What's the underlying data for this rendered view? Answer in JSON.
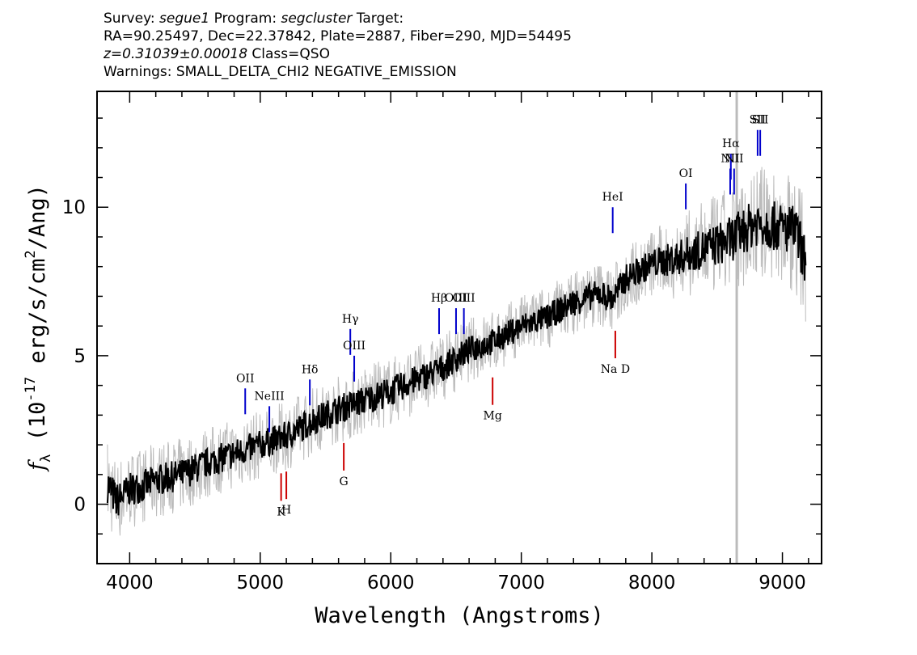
{
  "header": {
    "line1": {
      "survey_label": "Survey:",
      "survey": "segue1",
      "program_label": "Program:",
      "program": "segcluster",
      "target_label": "Target:"
    },
    "line2": "RA=90.25497, Dec=22.37842, Plate=2887, Fiber=290, MJD=54495",
    "line3": {
      "z": "z=0.31039±0.00018",
      "class": "Class=QSO"
    },
    "line4": "Warnings: SMALL_DELTA_CHI2 NEGATIVE_EMISSION"
  },
  "chart_data": {
    "type": "line",
    "xlabel": "Wavelength (Angstroms)",
    "ylabel": "f_λ (10^-17 erg/s/cm^2/Ang)",
    "xlim": [
      3750,
      9300
    ],
    "ylim": [
      -2,
      13.9
    ],
    "x_ticks": [
      4000,
      5000,
      6000,
      7000,
      8000,
      9000
    ],
    "y_ticks": [
      0,
      5,
      10
    ],
    "grid": false,
    "colors": {
      "flux": "#000000",
      "error": "#bbbbbb",
      "emission": "#0000cc",
      "absorption": "#cc0000"
    },
    "series": [
      {
        "x": [
          3830,
          3900,
          4000,
          4100,
          4200,
          4400,
          4600,
          4800,
          5000,
          5200,
          5400,
          5600,
          5800,
          6000,
          6200,
          6400,
          6600,
          6800,
          7000,
          7200,
          7400,
          7600,
          7700,
          7800,
          8000,
          8200,
          8400,
          8600,
          8800,
          9000,
          9100,
          9180
        ],
        "y": [
          0.7,
          0.1,
          0.5,
          0.6,
          0.8,
          1.0,
          1.4,
          1.7,
          2.0,
          2.3,
          2.8,
          3.2,
          3.5,
          3.8,
          4.2,
          4.6,
          5.2,
          5.5,
          6.0,
          6.3,
          6.8,
          7.1,
          6.9,
          7.6,
          8.1,
          8.3,
          8.6,
          8.9,
          9.5,
          9.3,
          9.2,
          8.1
        ]
      }
    ],
    "error_band": {
      "x": [
        3830,
        4000,
        5000,
        6000,
        7000,
        8000,
        8600,
        9180
      ],
      "y": [
        1.2,
        1.0,
        0.9,
        0.9,
        0.8,
        0.9,
        1.4,
        1.6
      ]
    },
    "marked_x": 8650,
    "emission_lines": [
      {
        "label": "OII",
        "x": 4885,
        "y_label": 4.2
      },
      {
        "label": "NeIII",
        "x": 5070,
        "y_label": 3.6
      },
      {
        "label": "Hδ",
        "x": 5380,
        "y_label": 4.5
      },
      {
        "label": "Hγ",
        "x": 5690,
        "y_label": 6.2
      },
      {
        "label": "OIII",
        "x": 5720,
        "y_label": 5.3
      },
      {
        "label": "Hβ",
        "x": 6370,
        "y_label": 6.9
      },
      {
        "label": "OIII",
        "x": 6500,
        "y_label": 6.9
      },
      {
        "label": "OIII",
        "x": 6560,
        "y_label": 6.9
      },
      {
        "label": "HeI",
        "x": 7700,
        "y_label": 10.3
      },
      {
        "label": "OI",
        "x": 8260,
        "y_label": 11.1
      },
      {
        "label": "NII",
        "x": 8600,
        "y_label": 11.6
      },
      {
        "label": "Hα",
        "x": 8605,
        "y_label": 12.1
      },
      {
        "label": "NII",
        "x": 8630,
        "y_label": 11.6
      },
      {
        "label": "SII",
        "x": 8810,
        "y_label": 12.9
      },
      {
        "label": "SII",
        "x": 8830,
        "y_label": 12.9
      }
    ],
    "absorption_lines": [
      {
        "label": "K",
        "x": 5160
      },
      {
        "label": "H",
        "x": 5200
      },
      {
        "label": "G",
        "x": 5640
      },
      {
        "label": "Mg",
        "x": 6780
      },
      {
        "label": "Na D",
        "x": 7720
      }
    ]
  }
}
